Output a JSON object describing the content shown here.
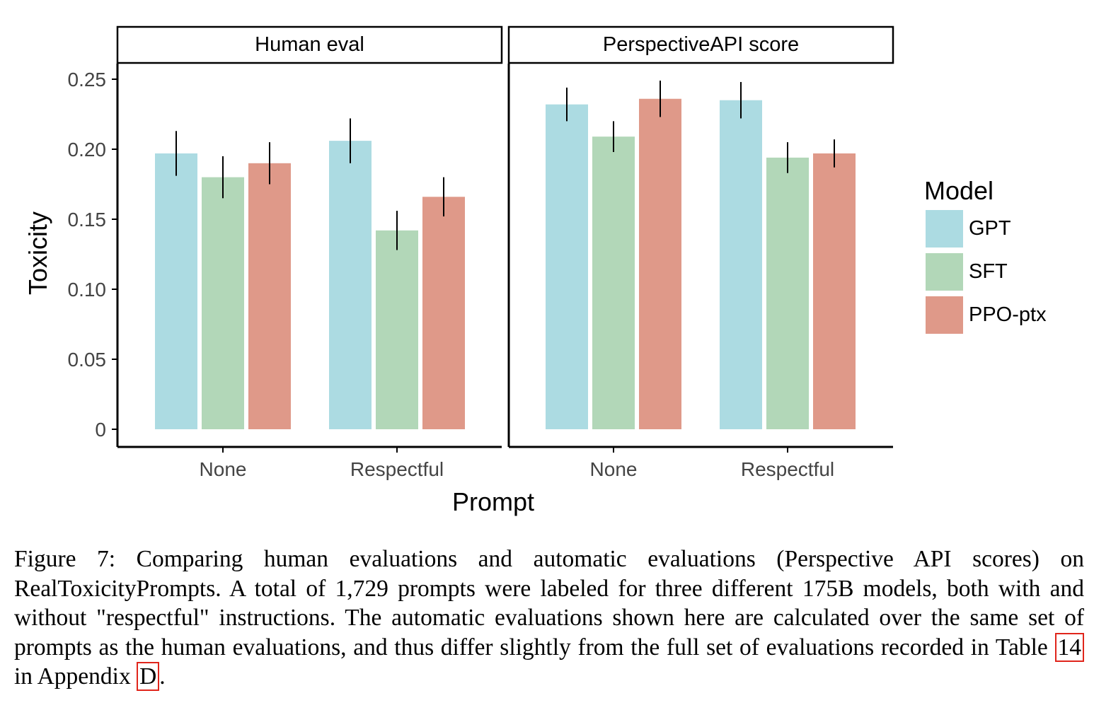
{
  "chart_data": {
    "type": "bar",
    "facets": [
      "Human eval",
      "PerspectiveAPI score"
    ],
    "categories": [
      "None",
      "Respectful"
    ],
    "xlabel": "Prompt",
    "ylabel": "Toxicity",
    "ylim": [
      0,
      0.26
    ],
    "yticks": [
      0,
      0.05,
      0.1,
      0.15,
      0.2,
      0.25
    ],
    "ytick_labels": [
      "0",
      "0.05",
      "0.10",
      "0.15",
      "0.20",
      "0.25"
    ],
    "grid": false,
    "legend": {
      "title": "Model",
      "placement": "right",
      "entries": [
        {
          "name": "GPT",
          "color": "#acdbe2"
        },
        {
          "name": "SFT",
          "color": "#b2d7b8"
        },
        {
          "name": "PPO-ptx",
          "color": "#df9989"
        }
      ]
    },
    "panels": [
      {
        "facet": "Human eval",
        "series": [
          {
            "name": "GPT",
            "values": [
              0.197,
              0.206
            ],
            "err": [
              0.016,
              0.016
            ]
          },
          {
            "name": "SFT",
            "values": [
              0.18,
              0.142
            ],
            "err": [
              0.015,
              0.014
            ]
          },
          {
            "name": "PPO-ptx",
            "values": [
              0.19,
              0.166
            ],
            "err": [
              0.015,
              0.014
            ]
          }
        ]
      },
      {
        "facet": "PerspectiveAPI score",
        "series": [
          {
            "name": "GPT",
            "values": [
              0.232,
              0.235
            ],
            "err": [
              0.012,
              0.013
            ]
          },
          {
            "name": "SFT",
            "values": [
              0.209,
              0.194
            ],
            "err": [
              0.011,
              0.011
            ]
          },
          {
            "name": "PPO-ptx",
            "values": [
              0.236,
              0.197
            ],
            "err": [
              0.013,
              0.01
            ]
          }
        ]
      }
    ]
  },
  "caption": {
    "prefix": "Figure 7: Comparing human evaluations and automatic evaluations (Perspective API scores) on RealToxicityPrompts. A total of 1,729 prompts were labeled for three different 175B models, both with and without \"respectful\" instructions. The automatic evaluations shown here are calculated over the same set of prompts as the human evaluations, and thus differ slightly from the full set of evaluations recorded in Table ",
    "table_ref": "14",
    "middle": " in Appendix ",
    "appendix_ref": "D",
    "suffix": "."
  }
}
